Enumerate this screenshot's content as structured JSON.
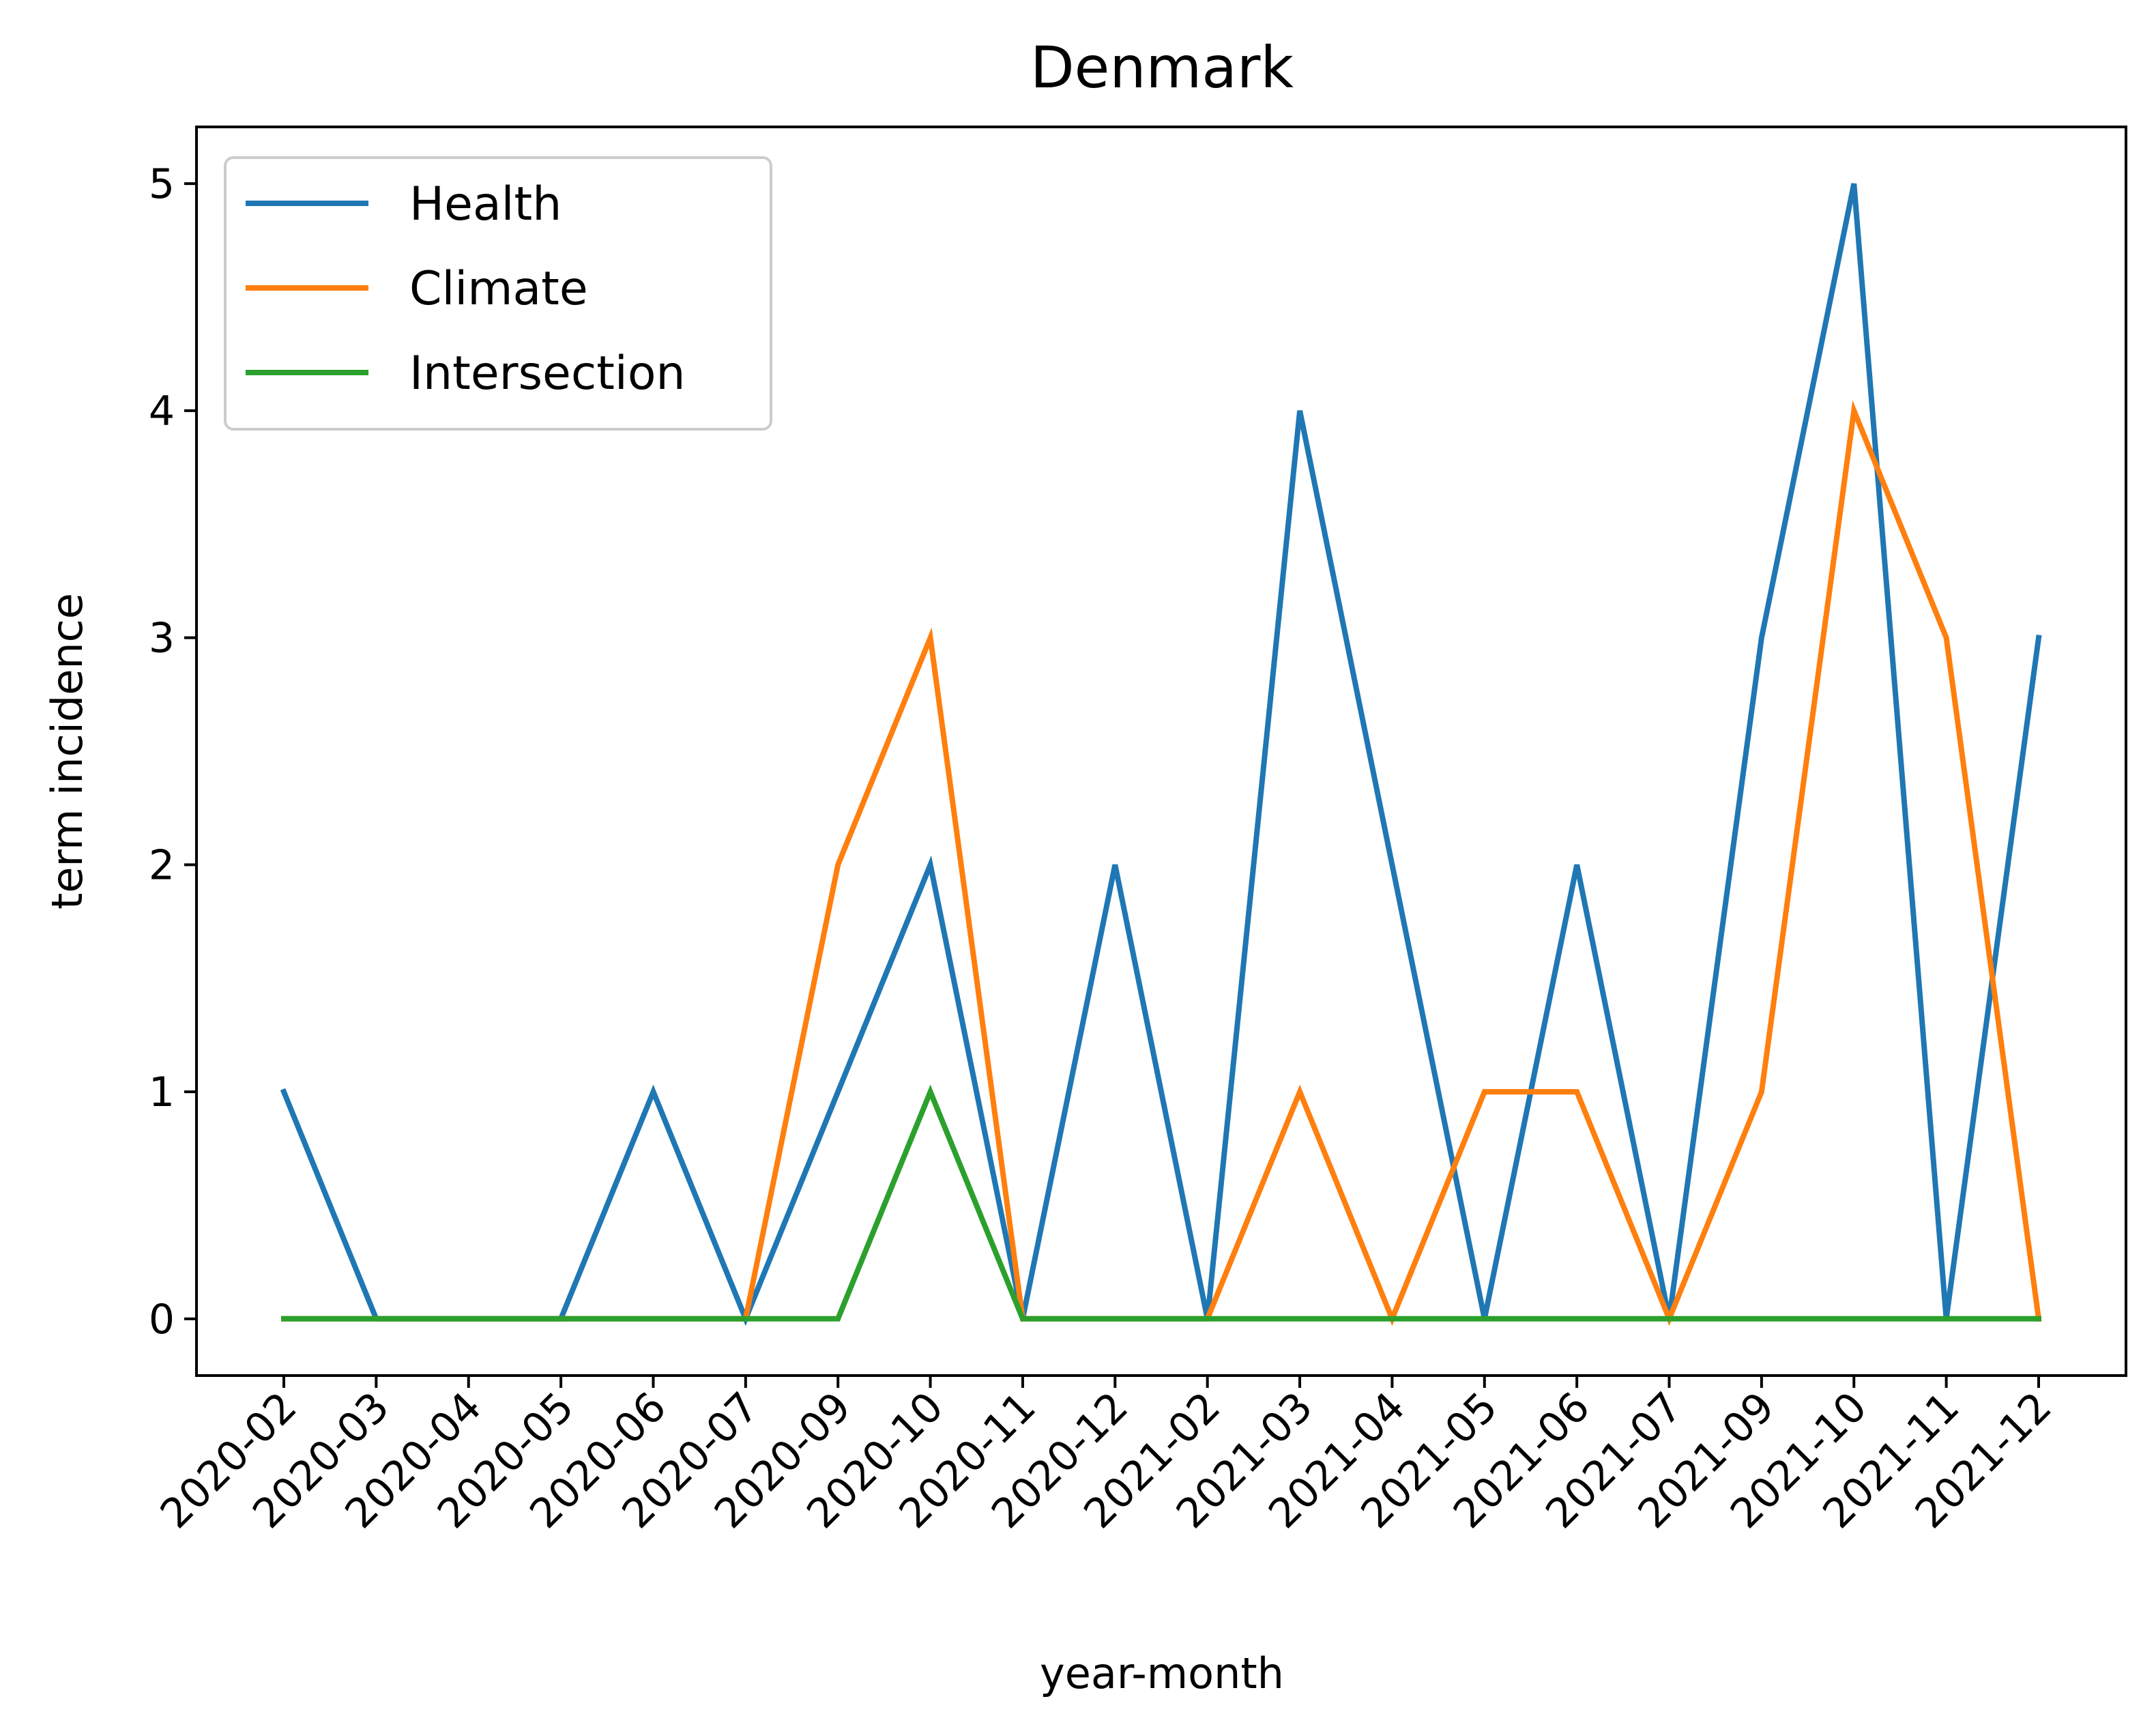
{
  "chart_data": {
    "type": "line",
    "title": "Denmark",
    "xlabel": "year-month",
    "ylabel": "term incidence",
    "categories": [
      "2020-02",
      "2020-03",
      "2020-04",
      "2020-05",
      "2020-06",
      "2020-07",
      "2020-09",
      "2020-10",
      "2020-11",
      "2020-12",
      "2021-02",
      "2021-03",
      "2021-04",
      "2021-05",
      "2021-06",
      "2021-07",
      "2021-09",
      "2021-10",
      "2021-11",
      "2021-12"
    ],
    "ylim": [
      -0.25,
      5.25
    ],
    "yticks": [
      0,
      1,
      2,
      3,
      4,
      5
    ],
    "grid": false,
    "legend_position": "top-left",
    "series": [
      {
        "name": "Health",
        "color": "#1f77b4",
        "values": [
          1,
          0,
          0,
          0,
          1,
          0,
          1,
          2,
          0,
          2,
          0,
          4,
          2,
          0,
          2,
          0,
          3,
          5,
          0,
          3
        ]
      },
      {
        "name": "Climate",
        "color": "#ff7f0e",
        "values": [
          0,
          0,
          0,
          0,
          0,
          0,
          2,
          3,
          0,
          0,
          0,
          1,
          0,
          1,
          1,
          0,
          1,
          4,
          3,
          0
        ]
      },
      {
        "name": "Intersection",
        "color": "#2ca02c",
        "values": [
          0,
          0,
          0,
          0,
          0,
          0,
          0,
          1,
          0,
          0,
          0,
          0,
          0,
          0,
          0,
          0,
          0,
          0,
          0,
          0
        ]
      }
    ]
  }
}
